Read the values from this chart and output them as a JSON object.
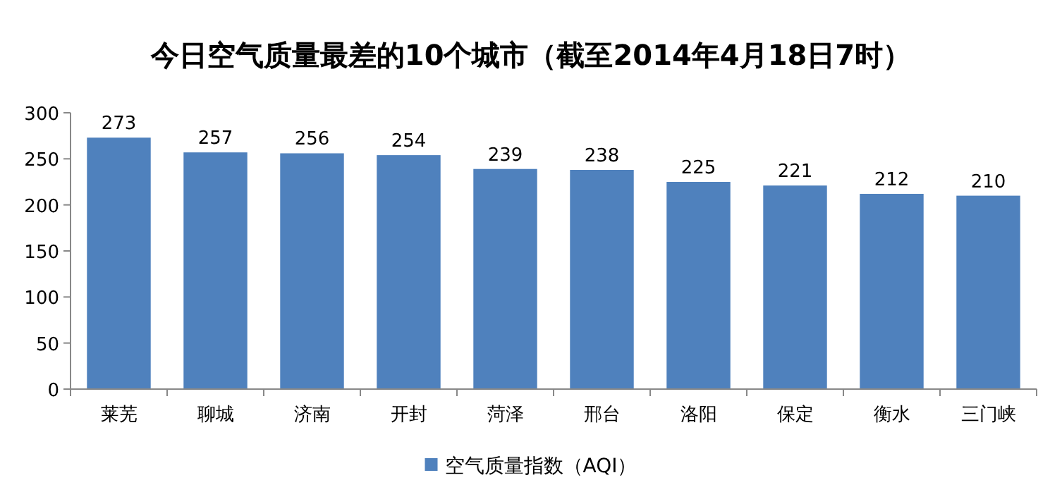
{
  "chart_data": {
    "type": "bar",
    "title": "今日空气质量最差的10个城市（截至2014年4月18日7时）",
    "categories": [
      "莱芜",
      "聊城",
      "济南",
      "开封",
      "菏泽",
      "邢台",
      "洛阳",
      "保定",
      "衡水",
      "三门峡"
    ],
    "series": [
      {
        "name": "空气质量指数（AQI）",
        "color": "#4f81bd",
        "values": [
          273,
          257,
          256,
          254,
          239,
          238,
          225,
          221,
          212,
          210
        ]
      }
    ],
    "ylim": [
      0,
      300
    ],
    "yticks": [
      0,
      50,
      100,
      150,
      200,
      250,
      300
    ],
    "data_labels": true,
    "legend": "bottom",
    "grid": false
  }
}
